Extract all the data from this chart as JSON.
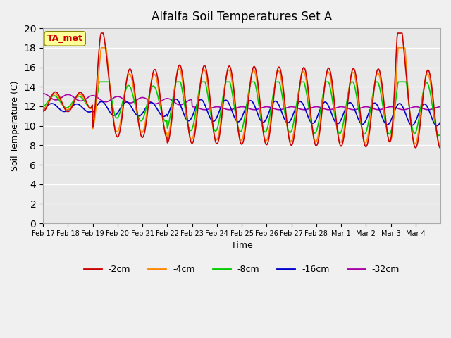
{
  "title": "Alfalfa Soil Temperatures Set A",
  "xlabel": "Time",
  "ylabel": "Soil Temperature (C)",
  "ylim": [
    0,
    20
  ],
  "yticks": [
    0,
    2,
    4,
    6,
    8,
    10,
    12,
    14,
    16,
    18,
    20
  ],
  "fig_bg_color": "#f0f0f0",
  "plot_bg_color": "#e8e8e8",
  "line_colors": {
    "-2cm": "#cc0000",
    "-4cm": "#ff8800",
    "-8cm": "#00cc00",
    "-16cm": "#0000cc",
    "-32cm": "#aa00aa"
  },
  "legend_labels": [
    "-2cm",
    "-4cm",
    "-8cm",
    "-16cm",
    "-32cm"
  ],
  "ta_met_label": "TA_met",
  "ta_met_color": "#cc0000",
  "ta_met_bg": "#ffff99",
  "x_tick_labels": [
    "Feb 17",
    "Feb 18",
    "Feb 19",
    "Feb 20",
    "Feb 21",
    "Feb 22",
    "Feb 23",
    "Feb 24",
    "Feb 25",
    "Feb 26",
    "Feb 27",
    "Feb 28",
    "Mar 1",
    "Mar 2",
    "Mar 3",
    "Mar 4"
  ],
  "n_days": 16,
  "n_points": 800
}
